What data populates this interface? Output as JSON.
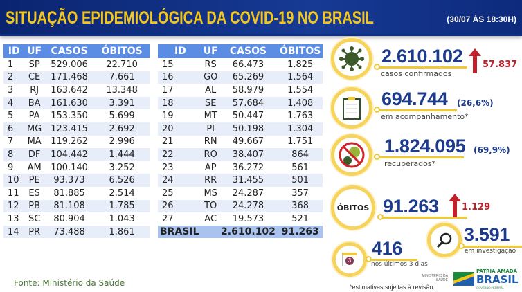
{
  "header": {
    "title": "SITUAÇÃO EPIDEMIOLÓGICA DA COVID-19 NO BRASIL",
    "date": "(30/07 ÀS 18:30H)"
  },
  "table": {
    "columns": [
      "ID",
      "UF",
      "CASOS",
      "ÓBITOS"
    ],
    "left": [
      [
        "1",
        "SP",
        "529.006",
        "22.710"
      ],
      [
        "2",
        "CE",
        "171.468",
        "7.661"
      ],
      [
        "3",
        "RJ",
        "163.642",
        "13.348"
      ],
      [
        "4",
        "BA",
        "161.630",
        "3.391"
      ],
      [
        "5",
        "PA",
        "153.350",
        "5.699"
      ],
      [
        "6",
        "MG",
        "123.415",
        "2.692"
      ],
      [
        "7",
        "MA",
        "119.262",
        "2.996"
      ],
      [
        "8",
        "DF",
        "104.442",
        "1.444"
      ],
      [
        "9",
        "AM",
        "100.140",
        "3.252"
      ],
      [
        "10",
        "PE",
        "93.373",
        "6.526"
      ],
      [
        "11",
        "ES",
        "81.885",
        "2.514"
      ],
      [
        "12",
        "PB",
        "81.108",
        "1.785"
      ],
      [
        "13",
        "SC",
        "80.904",
        "1.043"
      ],
      [
        "14",
        "PR",
        "73.488",
        "1.861"
      ]
    ],
    "right": [
      [
        "15",
        "RS",
        "66.473",
        "1.825"
      ],
      [
        "16",
        "GO",
        "65.269",
        "1.564"
      ],
      [
        "17",
        "AL",
        "58.979",
        "1.554"
      ],
      [
        "18",
        "SE",
        "57.684",
        "1.408"
      ],
      [
        "19",
        "MT",
        "50.447",
        "1.763"
      ],
      [
        "20",
        "PI",
        "50.198",
        "1.304"
      ],
      [
        "21",
        "RN",
        "49.667",
        "1.751"
      ],
      [
        "22",
        "RO",
        "38.407",
        "864"
      ],
      [
        "23",
        "AP",
        "36.272",
        "561"
      ],
      [
        "24",
        "RR",
        "31.455",
        "501"
      ],
      [
        "25",
        "MS",
        "24.287",
        "357"
      ],
      [
        "26",
        "TO",
        "24.278",
        "368"
      ],
      [
        "27",
        "AC",
        "19.573",
        "521"
      ]
    ],
    "total": {
      "label": "BRASIL",
      "casos": "2.610.102",
      "obitos": "91.263"
    }
  },
  "stats": {
    "confirmed": {
      "value": "2.610.102",
      "label": "casos confirmados",
      "increase": "57.837"
    },
    "monitoring": {
      "value": "694.744",
      "pct": "(26,6%)",
      "label": "em acompanhamento*"
    },
    "recovered": {
      "value": "1.824.095",
      "pct": "(69,9%)",
      "label": "recuperados*"
    },
    "deaths": {
      "badge": "ÓBITOS",
      "value": "91.263",
      "increase": "1.129"
    },
    "investigation": {
      "value": "3.591",
      "label": "em investigação"
    },
    "last3": {
      "value": "416",
      "label": "nos últimos 3 dias",
      "calendar": "3"
    }
  },
  "footer": {
    "source": "Fonte: Ministério da Saúde",
    "note": "*estimativas sujeitas à revisão.",
    "ministry": "MINISTÉRIO DA SAÚDE",
    "brand1": "PÁTRIA AMADA",
    "brand2": "BRASIL",
    "brand3": "GOVERNO FEDERAL"
  },
  "colors": {
    "navy": "#1c3b8c",
    "gold": "#f5c518",
    "red": "#c0202a",
    "header_blue": "#5b8de4"
  }
}
